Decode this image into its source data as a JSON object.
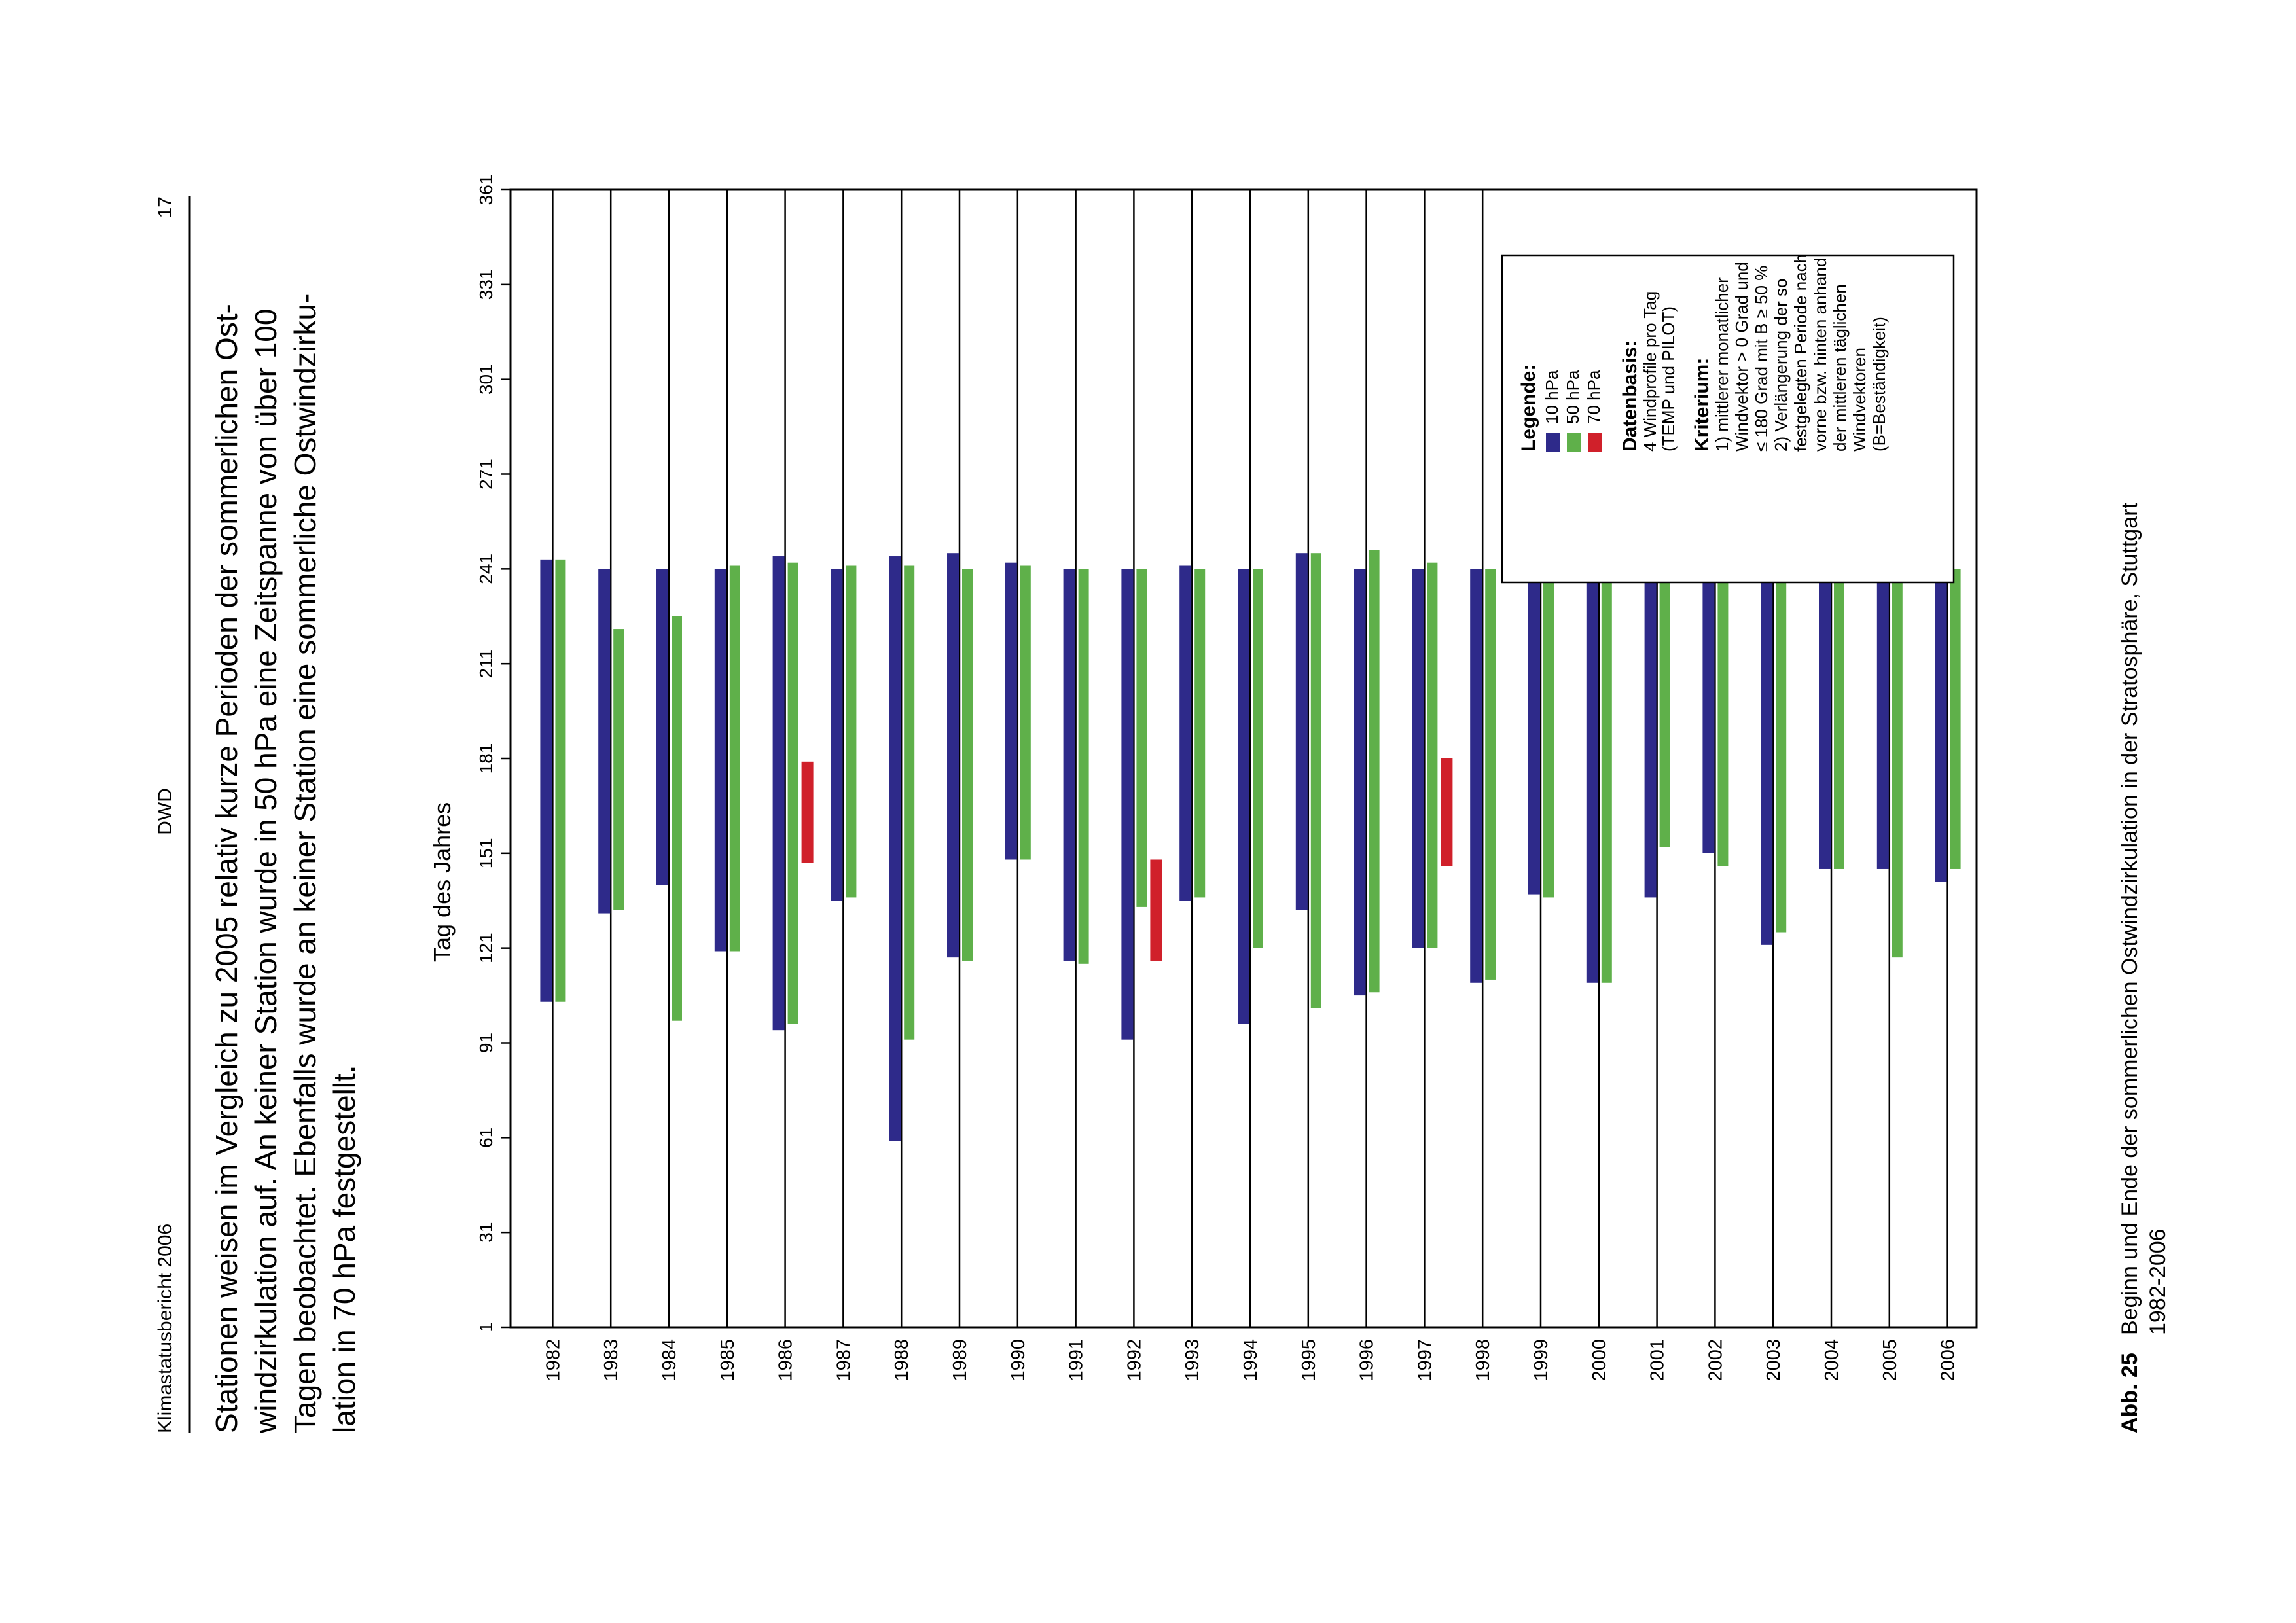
{
  "header": {
    "left": "Klimastatusbericht 2006",
    "center": "DWD",
    "page_number": "17"
  },
  "body": {
    "lines": [
      "Stationen weisen im Vergleich zu 2005 relativ kurze Perioden der sommerlichen Ost-",
      "windzirkulation auf. An keiner Station wurde in 50 hPa eine Zeitspanne von über 100",
      "Tagen beobachtet. Ebenfalls wurde an keiner Station eine sommerliche Ostwindzirku-",
      "lation in 70 hPa festgestellt."
    ]
  },
  "caption": {
    "label": "Abb. 25",
    "line1": "Beginn und Ende der sommerlichen Ostwindzirkulation in der Stratosphäre, Stuttgart",
    "line2": "1982-2006"
  },
  "colors": {
    "hpa10": "#2e2a8a",
    "hpa50": "#5fb04a",
    "hpa70": "#d0202a",
    "axis": "#000000",
    "grid_line": "#000000"
  },
  "chart_data": {
    "type": "bar",
    "orientation": "vertical floating range bars",
    "value_axis": {
      "label": "Tag des Jahres",
      "range": [
        1,
        361
      ],
      "ticks": [
        1,
        31,
        61,
        91,
        121,
        151,
        181,
        211,
        241,
        271,
        301,
        331,
        361
      ]
    },
    "categories": [
      "1982",
      "1983",
      "1984",
      "1985",
      "1986",
      "1987",
      "1988",
      "1989",
      "1990",
      "1991",
      "1992",
      "1993",
      "1994",
      "1995",
      "1996",
      "1997",
      "1998",
      "1999",
      "2000",
      "2001",
      "2002",
      "2003",
      "2004",
      "2005",
      "2006"
    ],
    "series": [
      {
        "name": "10 hPa",
        "color_key": "hpa10",
        "ranges": [
          [
            104,
            244
          ],
          [
            132,
            241
          ],
          [
            141,
            241
          ],
          [
            120,
            241
          ],
          [
            95,
            245
          ],
          [
            136,
            241
          ],
          [
            60,
            245
          ],
          [
            118,
            246
          ],
          [
            149,
            243
          ],
          [
            117,
            241
          ],
          [
            92,
            241
          ],
          [
            136,
            242
          ],
          [
            97,
            241
          ],
          [
            133,
            246
          ],
          [
            106,
            241
          ],
          [
            121,
            241
          ],
          [
            110,
            241
          ],
          [
            138,
            241
          ],
          [
            110,
            241
          ],
          [
            137,
            243
          ],
          [
            151,
            241
          ],
          [
            122,
            248
          ],
          [
            146,
            241
          ],
          [
            146,
            241
          ],
          [
            142,
            241
          ]
        ]
      },
      {
        "name": "50 hPa",
        "color_key": "hpa50",
        "ranges": [
          [
            104,
            244
          ],
          [
            133,
            222
          ],
          [
            98,
            226
          ],
          [
            120,
            242
          ],
          [
            97,
            243
          ],
          [
            137,
            242
          ],
          [
            92,
            242
          ],
          [
            117,
            241
          ],
          [
            149,
            242
          ],
          [
            116,
            241
          ],
          [
            134,
            241
          ],
          [
            137,
            241
          ],
          [
            121,
            241
          ],
          [
            102,
            246
          ],
          [
            107,
            247
          ],
          [
            121,
            243
          ],
          [
            111,
            241
          ],
          [
            137,
            242
          ],
          [
            110,
            241
          ],
          [
            153,
            241
          ],
          [
            147,
            241
          ],
          [
            126,
            241
          ],
          [
            146,
            242
          ],
          [
            118,
            247
          ],
          [
            146,
            241
          ]
        ]
      },
      {
        "name": "70 hPa",
        "color_key": "hpa70",
        "ranges": [
          null,
          null,
          null,
          null,
          [
            148,
            180
          ],
          null,
          null,
          null,
          null,
          null,
          [
            117,
            149
          ],
          null,
          null,
          null,
          null,
          [
            147,
            181
          ],
          null,
          null,
          null,
          null,
          null,
          null,
          null,
          null,
          null
        ]
      }
    ],
    "legend": {
      "title": "Legende:",
      "items": [
        "10  hPa",
        "50  hPa",
        "70  hPa"
      ],
      "datenbasis_title": "Datenbasis:",
      "datenbasis_lines": [
        "4 Windprofile pro Tag",
        "(TEMP und PILOT)"
      ],
      "kriterium_title": "Kriterium:",
      "kriterium_lines": [
        "1) mittlerer monatlicher",
        "Windvektor > 0 Grad und",
        "≤ 180 Grad mit B ≥ 50 %",
        "2) Verlängerung der so",
        "festgelegten Periode nach",
        "vorne bzw. hinten anhand",
        "der mittleren täglichen",
        "Windvektoren",
        "(B=Beständigkeit)"
      ],
      "placement": "upper-right"
    }
  }
}
